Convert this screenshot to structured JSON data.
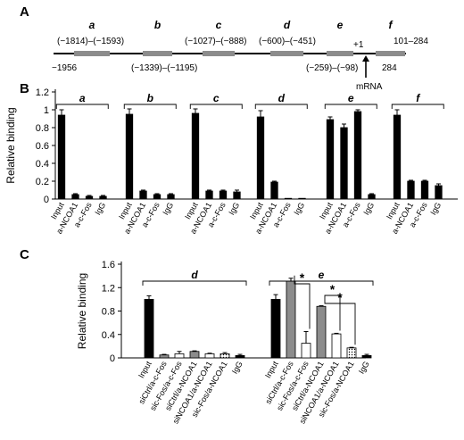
{
  "panel_a": {
    "label": "A",
    "start_label": "−1956",
    "end_label": "284",
    "tss_label": "+1",
    "mrna_label": "mRNA",
    "regions": [
      {
        "letter": "a",
        "range": "(−1814)–(−1593)"
      },
      {
        "letter": "b",
        "range": "(−1339)–(−1195)"
      },
      {
        "letter": "c",
        "range": "(−1027)–(−888)"
      },
      {
        "letter": "d",
        "range": "(−600)–(−451)"
      },
      {
        "letter": "e",
        "range": "(−259)–(−98)"
      },
      {
        "letter": "f",
        "range": "101–284"
      }
    ]
  },
  "chart_data": [
    {
      "panel": "B",
      "type": "bar",
      "ylabel": "Relative binding",
      "ylim": [
        0,
        1.2
      ],
      "yticks": [
        "0",
        "0.2",
        "0.4",
        "0.6",
        "0.8",
        "1",
        "1.2"
      ],
      "bar_color": "#000000",
      "groups": [
        {
          "name": "a",
          "categories": [
            "Input",
            "a-NCOA1",
            "a-c-Fos",
            "IgG"
          ],
          "values": [
            0.94,
            0.05,
            0.03,
            0.03
          ],
          "errors": [
            0.06,
            0.01,
            0.01,
            0.01
          ]
        },
        {
          "name": "b",
          "categories": [
            "Input",
            "a-NCOA1",
            "a-c-Fos",
            "IgG"
          ],
          "values": [
            0.95,
            0.09,
            0.05,
            0.05
          ],
          "errors": [
            0.06,
            0.01,
            0.01,
            0.01
          ]
        },
        {
          "name": "c",
          "categories": [
            "Input",
            "a-NCOA1",
            "a-c-Fos",
            "IgG"
          ],
          "values": [
            0.96,
            0.09,
            0.09,
            0.08
          ],
          "errors": [
            0.05,
            0.01,
            0.01,
            0.02
          ]
        },
        {
          "name": "d",
          "categories": [
            "Input",
            "a-NCOA1",
            "a-c-Fos",
            "IgG"
          ],
          "values": [
            0.92,
            0.19,
            0.0,
            0.0
          ],
          "errors": [
            0.07,
            0.01,
            0.0,
            0.0
          ]
        },
        {
          "name": "e",
          "categories": [
            "Input",
            "a-NCOA1",
            "a-c-Fos",
            "IgG"
          ],
          "values": [
            0.89,
            0.8,
            0.98,
            0.05
          ],
          "errors": [
            0.03,
            0.04,
            0.02,
            0.01
          ]
        },
        {
          "name": "f",
          "categories": [
            "Input",
            "a-NCOA1",
            "a-c-Fos",
            "IgG"
          ],
          "values": [
            0.94,
            0.2,
            0.2,
            0.15
          ],
          "errors": [
            0.06,
            0.01,
            0.01,
            0.02
          ]
        }
      ]
    },
    {
      "panel": "C",
      "type": "bar",
      "ylabel": "Relative binding",
      "ylim": [
        0,
        1.6
      ],
      "yticks": [
        "0",
        "0.4",
        "0.8",
        "1.2",
        "1.6"
      ],
      "colors": {
        "black": "#000000",
        "gray": "#8c8c8c",
        "white": "#ffffff",
        "dotted": "#d9d9d9"
      },
      "groups": [
        {
          "name": "d",
          "categories": [
            "Input",
            "siCtrl/a-c-Fos",
            "sic-Fos/a-c-Fos",
            "siCtrl/a-NCOA1",
            "siNCOA1/a-NCOA1",
            "sic-Fos/a-NCOA1",
            "IgG"
          ],
          "values": [
            1.0,
            0.05,
            0.07,
            0.11,
            0.07,
            0.07,
            0.04
          ],
          "errors": [
            0.06,
            0.01,
            0.04,
            0.01,
            0.01,
            0.02,
            0.02
          ],
          "fills": [
            "black",
            "gray",
            "white",
            "gray",
            "white",
            "dotted",
            "black"
          ]
        },
        {
          "name": "e",
          "categories": [
            "Input",
            "siCtrl/a-c-Fos",
            "sic-Fos/a-c-Fos",
            "siCtrl/a-NCOA1",
            "siNCOA1/a-NCOA1",
            "sic-Fos/a-NCOA1",
            "IgG"
          ],
          "values": [
            1.0,
            1.31,
            0.25,
            0.88,
            0.41,
            0.17,
            0.04
          ],
          "errors": [
            0.08,
            0.05,
            0.2,
            0.01,
            0.01,
            0.01,
            0.02
          ],
          "fills": [
            "black",
            "gray",
            "white",
            "gray",
            "white",
            "dotted",
            "black"
          ]
        }
      ],
      "significance": [
        {
          "group": "e",
          "from": 1,
          "to": 2,
          "label": "*"
        },
        {
          "group": "e",
          "from": 3,
          "to": 4,
          "label": "*"
        },
        {
          "group": "e",
          "from": 3,
          "to": 5,
          "label": "*"
        }
      ]
    }
  ]
}
